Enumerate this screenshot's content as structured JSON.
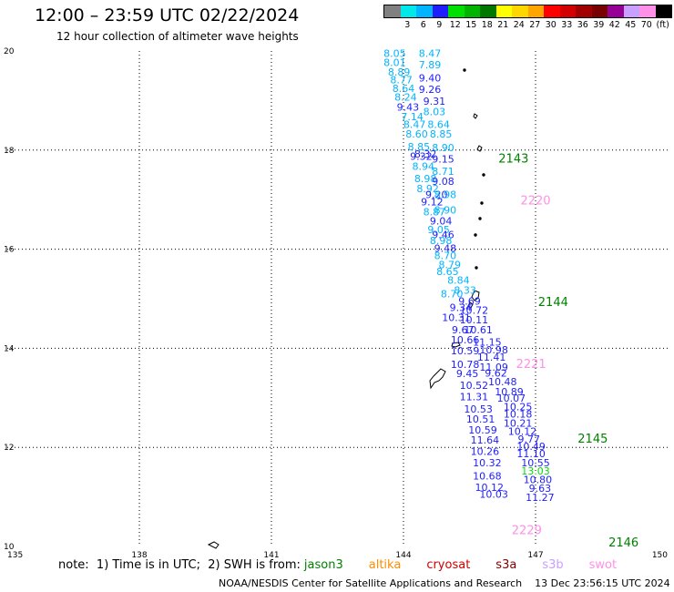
{
  "title": "12:00 – 23:59 UTC 02/22/2024",
  "subtitle": "12 hour collection of altimeter wave heights",
  "legend": {
    "colors": [
      "#808080",
      "#00e8e8",
      "#00b4ff",
      "#1e1eff",
      "#00e000",
      "#00b400",
      "#007800",
      "#ffff00",
      "#ffd700",
      "#ffa500",
      "#ff0000",
      "#d20000",
      "#a00000",
      "#780000",
      "#960096",
      "#c8a0ff",
      "#ff90e8",
      "#000000"
    ],
    "labels": [
      "",
      "3",
      "6",
      "9",
      "12",
      "15",
      "18",
      "21",
      "24",
      "27",
      "30",
      "33",
      "36",
      "39",
      "42",
      "45",
      "70"
    ],
    "unit": "(ft)"
  },
  "axes": {
    "x_ticks": [
      "135",
      "138",
      "141",
      "144",
      "147",
      "150"
    ],
    "y_ticks": [
      "20",
      "18",
      "16",
      "14",
      "12",
      "10"
    ]
  },
  "note": {
    "prefix": "note:  1) Time is in UTC;  2) SWH is from:",
    "satellites": [
      {
        "name": "jason3",
        "color": "#008000"
      },
      {
        "name": "altika",
        "color": "#ff8c00"
      },
      {
        "name": "cryosat",
        "color": "#d00000"
      },
      {
        "name": "s3a",
        "color": "#800000"
      },
      {
        "name": "s3b",
        "color": "#c8a0ff"
      },
      {
        "name": "swot",
        "color": "#ff90e8"
      }
    ]
  },
  "footer": "NOAA/NESDIS Center for Satellite Applications and Research    13 Dec 23:56:15 UTC 2024",
  "chart_data": {
    "type": "scatter",
    "title": "12:00 – 23:59 UTC 02/22/2024",
    "xlim": [
      135,
      150
    ],
    "ylim": [
      10,
      20
    ],
    "grid": true,
    "pass_labels": [
      {
        "text": "2143",
        "lon": 146.5,
        "lat": 17.75,
        "color": "#008000"
      },
      {
        "text": "2220",
        "lon": 147.0,
        "lat": 16.9,
        "color": "#ff90e8"
      },
      {
        "text": "2144",
        "lon": 147.4,
        "lat": 14.85,
        "color": "#008000"
      },
      {
        "text": "2221",
        "lon": 146.9,
        "lat": 13.6,
        "color": "#ff90e8"
      },
      {
        "text": "2145",
        "lon": 148.3,
        "lat": 12.1,
        "color": "#008000"
      },
      {
        "text": "2229",
        "lon": 146.8,
        "lat": 10.25,
        "color": "#ff90e8"
      },
      {
        "text": "2146",
        "lon": 149.0,
        "lat": 10.0,
        "color": "#008000"
      }
    ],
    "points": [
      {
        "lon": 143.8,
        "lat": 19.88,
        "v": "8.05",
        "c": "#00b4ff"
      },
      {
        "lon": 144.6,
        "lat": 19.88,
        "v": "8.47",
        "c": "#00b4ff"
      },
      {
        "lon": 143.8,
        "lat": 19.7,
        "v": "8.01",
        "c": "#00b4ff"
      },
      {
        "lon": 144.6,
        "lat": 19.65,
        "v": "7.89",
        "c": "#00b4ff"
      },
      {
        "lon": 143.9,
        "lat": 19.5,
        "v": "8.89",
        "c": "#00b4ff"
      },
      {
        "lon": 144.6,
        "lat": 19.38,
        "v": "9.40",
        "c": "#1e1eff"
      },
      {
        "lon": 143.95,
        "lat": 19.35,
        "v": "8.77",
        "c": "#00b4ff"
      },
      {
        "lon": 144.0,
        "lat": 19.17,
        "v": "8.64",
        "c": "#00b4ff"
      },
      {
        "lon": 144.6,
        "lat": 19.15,
        "v": "9.26",
        "c": "#1e1eff"
      },
      {
        "lon": 144.05,
        "lat": 19.0,
        "v": "8.24",
        "c": "#00b4ff"
      },
      {
        "lon": 144.7,
        "lat": 18.92,
        "v": "9.31",
        "c": "#1e1eff"
      },
      {
        "lon": 144.1,
        "lat": 18.8,
        "v": "9.43",
        "c": "#1e1eff"
      },
      {
        "lon": 144.7,
        "lat": 18.7,
        "v": "8.03",
        "c": "#00b4ff"
      },
      {
        "lon": 144.2,
        "lat": 18.6,
        "v": "7.14",
        "c": "#00b4ff"
      },
      {
        "lon": 144.25,
        "lat": 18.45,
        "v": "8.47",
        "c": "#00b4ff"
      },
      {
        "lon": 144.8,
        "lat": 18.45,
        "v": "8.64",
        "c": "#00b4ff"
      },
      {
        "lon": 144.3,
        "lat": 18.25,
        "v": "8.60",
        "c": "#00b4ff"
      },
      {
        "lon": 144.85,
        "lat": 18.25,
        "v": "8.85",
        "c": "#00b4ff"
      },
      {
        "lon": 144.35,
        "lat": 18.0,
        "v": "8.85",
        "c": "#00b4ff"
      },
      {
        "lon": 144.9,
        "lat": 17.98,
        "v": "8.90",
        "c": "#00b4ff"
      },
      {
        "lon": 144.5,
        "lat": 17.85,
        "v": "8.32",
        "c": "#1e1eff"
      },
      {
        "lon": 144.4,
        "lat": 17.8,
        "v": "9.32",
        "c": "#1e1eff"
      },
      {
        "lon": 144.9,
        "lat": 17.75,
        "v": "9.15",
        "c": "#1e1eff"
      },
      {
        "lon": 144.45,
        "lat": 17.6,
        "v": "8.94",
        "c": "#00b4ff"
      },
      {
        "lon": 144.9,
        "lat": 17.5,
        "v": "8.71",
        "c": "#00b4ff"
      },
      {
        "lon": 144.5,
        "lat": 17.35,
        "v": "8.98",
        "c": "#00b4ff"
      },
      {
        "lon": 144.9,
        "lat": 17.3,
        "v": "9.08",
        "c": "#1e1eff"
      },
      {
        "lon": 144.55,
        "lat": 17.15,
        "v": "8.92",
        "c": "#00b4ff"
      },
      {
        "lon": 144.75,
        "lat": 17.03,
        "v": "9.20",
        "c": "#1e1eff"
      },
      {
        "lon": 144.95,
        "lat": 17.03,
        "v": "8.98",
        "c": "#00b4ff"
      },
      {
        "lon": 144.65,
        "lat": 16.88,
        "v": "9.12",
        "c": "#1e1eff"
      },
      {
        "lon": 144.95,
        "lat": 16.72,
        "v": "8.90",
        "c": "#00b4ff"
      },
      {
        "lon": 144.7,
        "lat": 16.68,
        "v": "8.87",
        "c": "#00b4ff"
      },
      {
        "lon": 144.85,
        "lat": 16.5,
        "v": "9.04",
        "c": "#1e1eff"
      },
      {
        "lon": 144.8,
        "lat": 16.32,
        "v": "9.05",
        "c": "#00b4ff"
      },
      {
        "lon": 144.9,
        "lat": 16.22,
        "v": "9.46",
        "c": "#1e1eff"
      },
      {
        "lon": 144.85,
        "lat": 16.1,
        "v": "8.98",
        "c": "#00b4ff"
      },
      {
        "lon": 144.95,
        "lat": 15.95,
        "v": "9.48",
        "c": "#1e1eff"
      },
      {
        "lon": 144.95,
        "lat": 15.8,
        "v": "8.70",
        "c": "#00b4ff"
      },
      {
        "lon": 145.05,
        "lat": 15.62,
        "v": "8.79",
        "c": "#00b4ff"
      },
      {
        "lon": 145.0,
        "lat": 15.48,
        "v": "8.65",
        "c": "#00b4ff"
      },
      {
        "lon": 145.25,
        "lat": 15.3,
        "v": "8.84",
        "c": "#00b4ff"
      },
      {
        "lon": 145.4,
        "lat": 15.1,
        "v": "8.33",
        "c": "#00b4ff"
      },
      {
        "lon": 145.1,
        "lat": 15.03,
        "v": "8.70",
        "c": "#00b4ff"
      },
      {
        "lon": 145.5,
        "lat": 14.88,
        "v": "9.69",
        "c": "#1e1eff"
      },
      {
        "lon": 145.3,
        "lat": 14.75,
        "v": "9.34",
        "c": "#1e1eff"
      },
      {
        "lon": 145.6,
        "lat": 14.7,
        "v": "10.72",
        "c": "#1e1eff"
      },
      {
        "lon": 145.2,
        "lat": 14.55,
        "v": "10.31",
        "c": "#1e1eff"
      },
      {
        "lon": 145.6,
        "lat": 14.5,
        "v": "10.11",
        "c": "#1e1eff"
      },
      {
        "lon": 145.35,
        "lat": 14.3,
        "v": "9.67",
        "c": "#1e1eff"
      },
      {
        "lon": 145.7,
        "lat": 14.3,
        "v": "10.61",
        "c": "#1e1eff"
      },
      {
        "lon": 145.4,
        "lat": 14.1,
        "v": "10.66",
        "c": "#1e1eff"
      },
      {
        "lon": 145.9,
        "lat": 14.05,
        "v": "11.15",
        "c": "#1e1eff"
      },
      {
        "lon": 145.4,
        "lat": 13.88,
        "v": "10.59",
        "c": "#1e1eff"
      },
      {
        "lon": 146.05,
        "lat": 13.9,
        "v": "10.98",
        "c": "#1e1eff"
      },
      {
        "lon": 146.0,
        "lat": 13.75,
        "v": "11.41",
        "c": "#1e1eff"
      },
      {
        "lon": 145.4,
        "lat": 13.6,
        "v": "10.78",
        "c": "#1e1eff"
      },
      {
        "lon": 146.05,
        "lat": 13.55,
        "v": "11.09",
        "c": "#1e1eff"
      },
      {
        "lon": 145.45,
        "lat": 13.42,
        "v": "9.45",
        "c": "#1e1eff"
      },
      {
        "lon": 146.1,
        "lat": 13.43,
        "v": "9.62",
        "c": "#1e1eff"
      },
      {
        "lon": 146.25,
        "lat": 13.25,
        "v": "10.48",
        "c": "#1e1eff"
      },
      {
        "lon": 145.6,
        "lat": 13.18,
        "v": "10.52",
        "c": "#1e1eff"
      },
      {
        "lon": 146.4,
        "lat": 13.05,
        "v": "10.89",
        "c": "#1e1eff"
      },
      {
        "lon": 145.6,
        "lat": 12.95,
        "v": "11.31",
        "c": "#1e1eff"
      },
      {
        "lon": 146.45,
        "lat": 12.92,
        "v": "10.07",
        "c": "#1e1eff"
      },
      {
        "lon": 146.6,
        "lat": 12.75,
        "v": "10.25",
        "c": "#1e1eff"
      },
      {
        "lon": 145.7,
        "lat": 12.7,
        "v": "10.53",
        "c": "#1e1eff"
      },
      {
        "lon": 146.6,
        "lat": 12.6,
        "v": "10.18",
        "c": "#1e1eff"
      },
      {
        "lon": 145.75,
        "lat": 12.5,
        "v": "10.51",
        "c": "#1e1eff"
      },
      {
        "lon": 146.6,
        "lat": 12.42,
        "v": "10.21",
        "c": "#1e1eff"
      },
      {
        "lon": 145.8,
        "lat": 12.28,
        "v": "10.59",
        "c": "#1e1eff"
      },
      {
        "lon": 146.7,
        "lat": 12.25,
        "v": "10.12",
        "c": "#1e1eff"
      },
      {
        "lon": 146.85,
        "lat": 12.1,
        "v": "9.77",
        "c": "#1e1eff"
      },
      {
        "lon": 145.85,
        "lat": 12.08,
        "v": "11.64",
        "c": "#1e1eff"
      },
      {
        "lon": 146.9,
        "lat": 11.95,
        "v": "10.49",
        "c": "#1e1eff"
      },
      {
        "lon": 145.85,
        "lat": 11.85,
        "v": "10.26",
        "c": "#1e1eff"
      },
      {
        "lon": 146.9,
        "lat": 11.8,
        "v": "11.10",
        "c": "#1e1eff"
      },
      {
        "lon": 145.9,
        "lat": 11.62,
        "v": "10.32",
        "c": "#1e1eff"
      },
      {
        "lon": 147.0,
        "lat": 11.62,
        "v": "10.55",
        "c": "#1e1eff"
      },
      {
        "lon": 147.0,
        "lat": 11.45,
        "v": "13.03",
        "c": "#00e000"
      },
      {
        "lon": 145.9,
        "lat": 11.35,
        "v": "10.68",
        "c": "#1e1eff"
      },
      {
        "lon": 147.05,
        "lat": 11.28,
        "v": "10.80",
        "c": "#1e1eff"
      },
      {
        "lon": 145.95,
        "lat": 11.12,
        "v": "10.12",
        "c": "#1e1eff"
      },
      {
        "lon": 147.1,
        "lat": 11.1,
        "v": "9.63",
        "c": "#1e1eff"
      },
      {
        "lon": 146.05,
        "lat": 10.98,
        "v": "10.03",
        "c": "#1e1eff"
      },
      {
        "lon": 147.1,
        "lat": 10.92,
        "v": "11.27",
        "c": "#1e1eff"
      }
    ]
  }
}
